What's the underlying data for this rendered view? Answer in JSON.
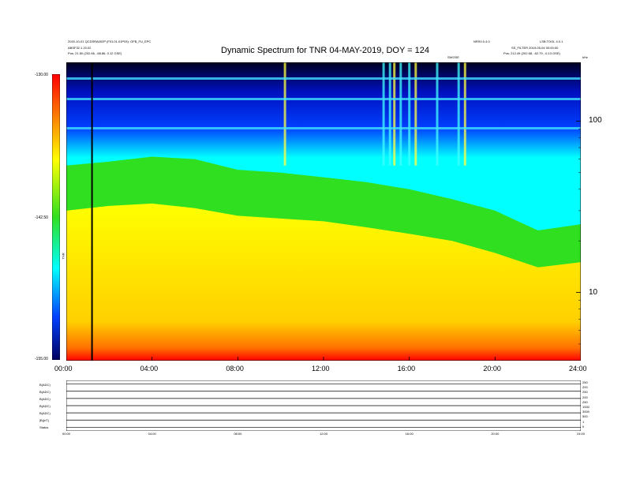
{
  "header": {
    "title": "Dynamic Spectrum for TNR 04-MAY-2019, DOY = 124",
    "left_line1": "2020-10-01 QCDSRA002P (F01.01.01P03): OFB_FU_EPC",
    "left_line2": "ABSF32.1 20.02",
    "left_pos_label": "Pos:",
    "left_pos_value": "21.50 (202.66, -68.86, 0.12 GSE)",
    "right_top_mid": "NRS0.0.4.0",
    "right_top_right": "LSB.TOOL 4.0.1",
    "right_line2": "SS_FILTER 2019-05-04 00:00:00",
    "right_pos_label": "Pos:",
    "right_pos_value": "212.49 (202.68, -62.79, -0.13 GSE)",
    "marker_label": "SWGSE",
    "corner_right": "kHz"
  },
  "colorbar": {
    "top_label": "-130.00",
    "mid_label": "-142.50",
    "bottom_label": "-155.00",
    "side_label": "TNR"
  },
  "chart_data": {
    "type": "heatmap",
    "title": "Dynamic Spectrum for TNR 04-MAY-2019, DOY = 124",
    "xlabel": "",
    "ylabel": "kHz",
    "x_ticks": [
      "00:00",
      "04:00",
      "08:00",
      "12:00",
      "16:00",
      "20:00",
      "24:00"
    ],
    "x_range_hours": [
      0,
      24
    ],
    "y_scale": "log",
    "y_ticks": [
      10,
      100
    ],
    "y_range_khz": [
      4,
      220
    ],
    "z_range": [
      -155.0,
      -130.0
    ],
    "z_ticks": [
      -130.0,
      -142.5,
      -155.0
    ],
    "colormap": [
      "#ff0000",
      "#ffa000",
      "#ffff00",
      "#30e020",
      "#00ffff",
      "#0000ff",
      "#000000"
    ],
    "vertical_marker_hour": 1.2,
    "spectral_boundary": [
      {
        "hour": 0.0,
        "green_khz": 55,
        "yellow_khz": 30
      },
      {
        "hour": 2.0,
        "green_khz": 58,
        "yellow_khz": 32
      },
      {
        "hour": 4.0,
        "green_khz": 62,
        "yellow_khz": 33
      },
      {
        "hour": 6.0,
        "green_khz": 60,
        "yellow_khz": 31
      },
      {
        "hour": 8.0,
        "green_khz": 52,
        "yellow_khz": 28
      },
      {
        "hour": 10.0,
        "green_khz": 50,
        "yellow_khz": 27
      },
      {
        "hour": 12.0,
        "green_khz": 47,
        "yellow_khz": 26
      },
      {
        "hour": 14.0,
        "green_khz": 44,
        "yellow_khz": 24
      },
      {
        "hour": 16.0,
        "green_khz": 40,
        "yellow_khz": 22
      },
      {
        "hour": 18.0,
        "green_khz": 35,
        "yellow_khz": 20
      },
      {
        "hour": 20.0,
        "green_khz": 30,
        "yellow_khz": 17
      },
      {
        "hour": 22.0,
        "green_khz": 23,
        "yellow_khz": 14
      },
      {
        "hour": 24.0,
        "green_khz": 25,
        "yellow_khz": 15
      }
    ],
    "bursts_hours": [
      10.2,
      14.8,
      15.1,
      15.3,
      15.6,
      16.0,
      16.3,
      17.3,
      18.3,
      18.6
    ]
  },
  "lower_panel": {
    "row_labels": [
      "B(ADC)",
      "B(ADC)",
      "B(ADC)",
      "B(ADC)",
      "B(ADC)",
      "|B|(nT)",
      "Status"
    ],
    "right_labels": [
      "250",
      "200",
      "250",
      "200",
      "250",
      "1000",
      "3000",
      "500",
      "1",
      "0"
    ],
    "x_ticks": [
      "00:00",
      "04:00",
      "08:00",
      "12:00",
      "16:00",
      "20:00",
      "24:00"
    ]
  }
}
